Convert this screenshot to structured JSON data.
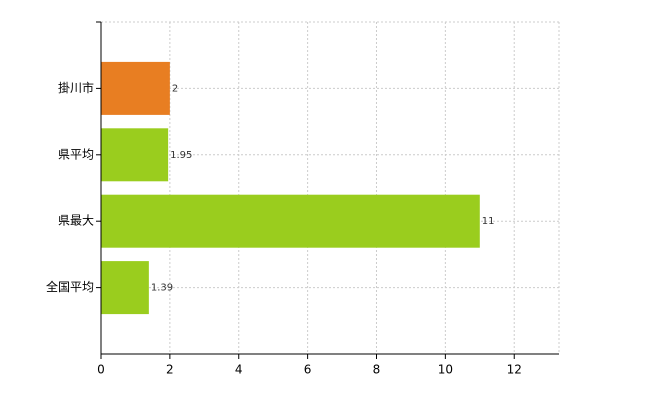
{
  "chart_data": {
    "type": "barh",
    "categories": [
      "掛川市",
      "県平均",
      "県最大",
      "全国平均"
    ],
    "values": [
      2,
      1.95,
      11,
      1.39
    ],
    "colors": [
      "#e87e22",
      "#9acd1e",
      "#9acd1e",
      "#9acd1e"
    ],
    "xlim": [
      0,
      13.3
    ],
    "xticks": [
      0,
      2,
      4,
      6,
      8,
      10,
      12
    ],
    "grid": true
  }
}
